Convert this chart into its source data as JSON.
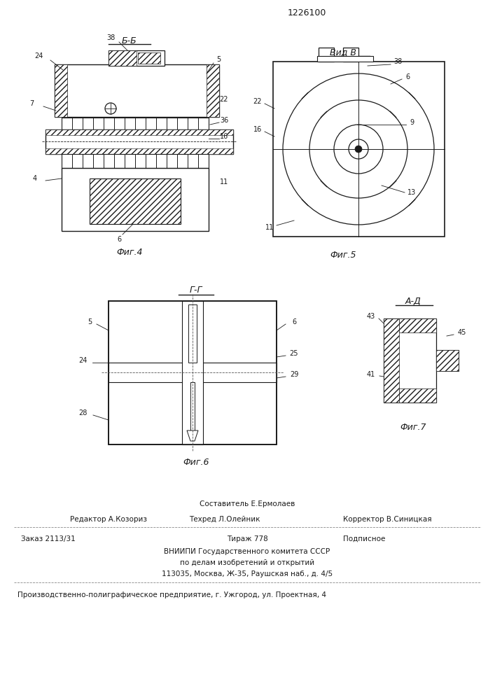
{
  "patent_number": "1226100",
  "bg_color": "#ffffff",
  "line_color": "#1a1a1a",
  "fig4_title": "Б-Б",
  "fig5_title": "Вид В",
  "fig6_title": "Г-Г",
  "fig7_title": "А-Д",
  "fig4_caption": "Фиг.4",
  "fig5_caption": "Фиг.5",
  "fig6_caption": "Фиг.6",
  "fig7_caption": "Фиг.7",
  "footer": {
    "line1_above": "Составитель Е.Ермолаев",
    "line1_left": "Редактор А.Козориз",
    "line1_center": "Техред Л.Олейник",
    "line1_right": "Корректор В.Синицкая",
    "line2_left": "Заказ 2113/31",
    "line2_center": "Тираж 778",
    "line2_right": "Подписное",
    "line3": "ВНИИПИ Государственного комитета СССР",
    "line4": "по делам изобретений и открытий",
    "line5": "113035, Москва, Ж-35, Раушская наб., д. 4/5",
    "line6": "Производственно-полиграфическое предприятие, г. Ужгород, ул. Проектная, 4"
  }
}
